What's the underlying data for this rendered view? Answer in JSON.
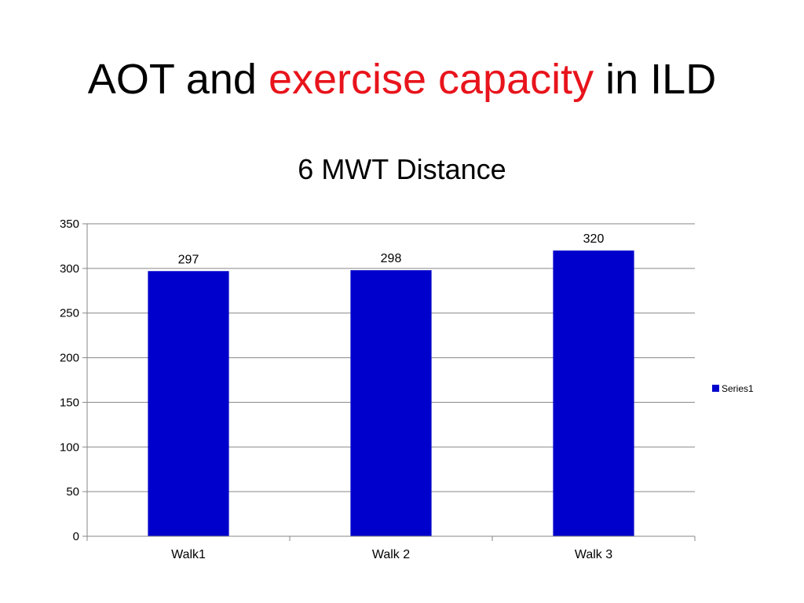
{
  "slide": {
    "title_part1": "AOT and ",
    "title_highlight": "exercise capacity",
    "title_part3": " in ILD"
  },
  "colors": {
    "accent": "#e8141c",
    "bar": "#0000cc",
    "grid": "#878787"
  },
  "chart_data": {
    "type": "bar",
    "title": "6 MWT Distance",
    "categories": [
      "Walk1",
      "Walk 2",
      "Walk 3"
    ],
    "series": [
      {
        "name": "Series1",
        "values": [
          297,
          298,
          320
        ]
      }
    ],
    "ylim": [
      0,
      350
    ],
    "yticks": [
      0,
      50,
      100,
      150,
      200,
      250,
      300,
      350
    ],
    "grid": true,
    "legend": "right",
    "data_labels": [
      "297",
      "298",
      "320"
    ]
  }
}
